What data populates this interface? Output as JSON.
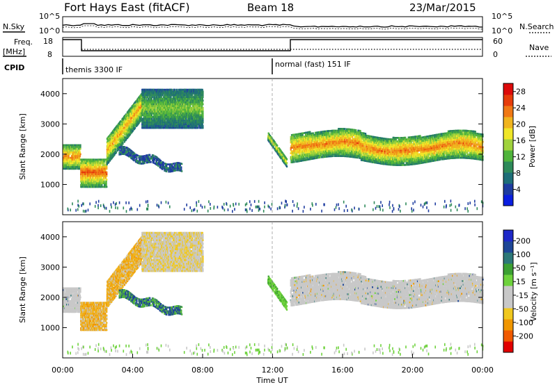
{
  "header": {
    "station": "Fort Hays East (fitACF)",
    "beam": "Beam 18",
    "date": "23/Mar/2015"
  },
  "status_panels": {
    "nsky_label": "N.Sky",
    "nsearch_label": "N.Search",
    "noise_ticks_left": [
      "10^5",
      "10^0"
    ],
    "noise_ticks_right": [
      "10^5",
      "10^0"
    ],
    "freq_label": "Freq.",
    "freq_unit": "[MHz]",
    "freq_ticks": [
      "18",
      "8"
    ],
    "nave_label": "Nave",
    "nave_ticks": [
      "60",
      "0"
    ],
    "cpid_label": "CPID",
    "cpid_segments": [
      "themis 3300 IF",
      "normal (fast) 151 IF"
    ]
  },
  "colors": {
    "power_scale": [
      "#0a1ee0",
      "#1e3ca0",
      "#1e6e78",
      "#2e8a5a",
      "#50b43c",
      "#a0d23c",
      "#f0e628",
      "#f0b41e",
      "#f07814",
      "#e63c0a",
      "#dc0a0a"
    ],
    "velocity_scale": [
      "#e10000",
      "#f05a00",
      "#f09600",
      "#f0c81e",
      "#c8c8c8",
      "#c8c8c8",
      "#6ed23c",
      "#3ca032",
      "#2d7878",
      "#1e4696",
      "#1e28c8"
    ],
    "ground_scatter": "#bebebe"
  },
  "chart_data": [
    {
      "type": "heatmap",
      "panel": "power",
      "ylabel": "Slant Range [km]",
      "yticks": [
        "1000",
        "2000",
        "3000",
        "4000"
      ],
      "ylim": [
        0,
        4500
      ],
      "colorbar_label": "Power [dB]",
      "colorbar_ticks": [
        "4",
        "8",
        "12",
        "16",
        "20",
        "24",
        "28"
      ],
      "colorbar_range": [
        0,
        30
      ],
      "x_range_hours": [
        0,
        24
      ],
      "echo_bands": [
        {
          "t_start": 0.0,
          "t_end": 1.0,
          "range_low": 1550,
          "range_high": 2350,
          "peak": 24
        },
        {
          "t_start": 1.0,
          "t_end": 2.5,
          "range_low": 950,
          "range_high": 1900,
          "peak": 26
        },
        {
          "t_start": 2.5,
          "t_end": 4.5,
          "range_low": 1700,
          "range_high": 3400,
          "peak": 22
        },
        {
          "t_start": 4.5,
          "t_end": 8.0,
          "range_low": 2900,
          "range_high": 4200,
          "peak": 14
        },
        {
          "t_start": 11.7,
          "t_end": 12.8,
          "range_low": 1600,
          "range_high": 2600,
          "peak": 18
        },
        {
          "t_start": 13.0,
          "t_end": 24.0,
          "range_low": 1800,
          "range_high": 2850,
          "peak": 24
        }
      ]
    },
    {
      "type": "heatmap",
      "panel": "velocity",
      "ylabel": "Slant Range [km]",
      "yticks": [
        "1000",
        "2000",
        "3000",
        "4000"
      ],
      "ylim": [
        0,
        4500
      ],
      "colorbar_label": "Velocity [m s⁻¹]",
      "colorbar_ticks": [
        "200",
        "100",
        "50",
        "15",
        "-15",
        "-50",
        "-100",
        "-200"
      ],
      "colorbar_range": [
        -250,
        250
      ],
      "x_range_hours": [
        0,
        24
      ],
      "xlabel": "Time UT",
      "xticks": [
        "00:00",
        "04:00",
        "08:00",
        "12:00",
        "16:00",
        "20:00",
        "00:00"
      ]
    }
  ]
}
